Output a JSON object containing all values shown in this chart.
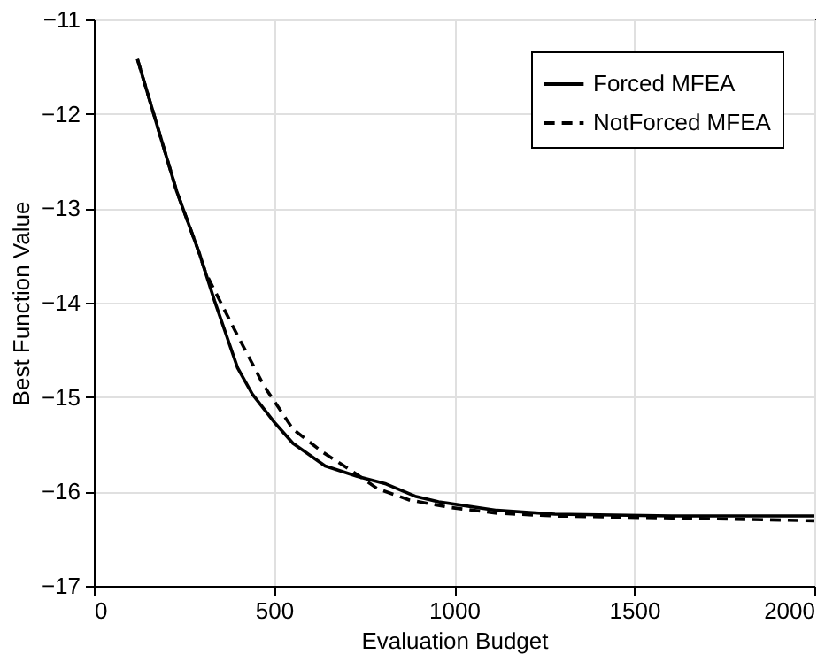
{
  "chart_data": {
    "type": "line",
    "xlabel": "Evaluation Budget",
    "ylabel": "Best Function Value",
    "xlim": [
      0,
      2000
    ],
    "xticks": [
      0,
      500,
      1000,
      1500,
      2000
    ],
    "ylim": [
      -17,
      -11
    ],
    "yticks": [
      -17,
      -16,
      -15,
      -14,
      -13,
      -12,
      -11
    ],
    "grid": true,
    "legend": "top right",
    "marker": "none",
    "series": [
      {
        "name": "Forced MFEA",
        "color": "#000000",
        "line_style": "solid",
        "x": [
          121,
          230,
          294,
          335,
          399,
          440,
          504,
          553,
          642,
          731,
          811,
          892,
          957,
          1119,
          1280,
          1604,
          2000
        ],
        "values": [
          -11.42,
          -12.82,
          -13.49,
          -13.98,
          -14.69,
          -14.97,
          -15.28,
          -15.49,
          -15.73,
          -15.84,
          -15.92,
          -16.05,
          -16.11,
          -16.2,
          -16.24,
          -16.26,
          -16.26
        ]
      },
      {
        "name": "NotForced MFEA",
        "color": "#000000",
        "line_style": "dashed",
        "x": [
          121,
          230,
          294,
          310,
          391,
          472,
          553,
          634,
          715,
          787,
          876,
          990,
          1119,
          1280,
          1604,
          2000
        ],
        "values": [
          -11.42,
          -12.82,
          -13.49,
          -13.68,
          -14.29,
          -14.88,
          -15.34,
          -15.58,
          -15.78,
          -15.97,
          -16.09,
          -16.17,
          -16.23,
          -16.26,
          -16.28,
          -16.31
        ]
      }
    ]
  }
}
